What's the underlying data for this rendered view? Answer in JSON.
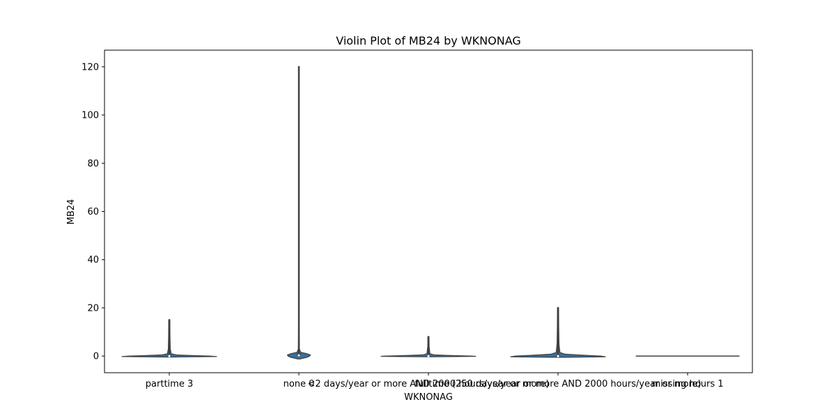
{
  "chart_data": {
    "type": "violin",
    "title": "Violin Plot of MB24 by WKNONAG",
    "xlabel": "WKNONAG",
    "ylabel": "MB24",
    "ylim": [
      -6.9,
      126.9
    ],
    "yticks": [
      0,
      20,
      40,
      60,
      80,
      100,
      120
    ],
    "ytick_labels": [
      "0",
      "20",
      "40",
      "60",
      "80",
      "100",
      "120"
    ],
    "grid": false,
    "colors": {
      "violin_fill": "#3a6e9c",
      "edge": "#3f3f3f",
      "frame": "#000000"
    },
    "categories": [
      {
        "label": "parttime 3",
        "max": 15,
        "min": 0,
        "q1": 0,
        "median": 0,
        "q3": 0.2,
        "width": 0.92,
        "density": [
          [
            -0.4,
            0.1
          ],
          [
            -0.2,
            1
          ],
          [
            0,
            0.85
          ],
          [
            0.2,
            0.5
          ],
          [
            0.5,
            0.15
          ],
          [
            1,
            0.04
          ],
          [
            3,
            0.02
          ],
          [
            8,
            0.015
          ],
          [
            15,
            0.012
          ]
        ]
      },
      {
        "label": "none 0",
        "max": 120,
        "min": 0,
        "q1": 0,
        "median": 0.3,
        "q3": 0.8,
        "width": 0.22,
        "density": [
          [
            -1.2,
            0.1
          ],
          [
            -0.5,
            0.7
          ],
          [
            0,
            0.95
          ],
          [
            0.5,
            1
          ],
          [
            1,
            0.7
          ],
          [
            1.6,
            0.15
          ],
          [
            3,
            0.04
          ],
          [
            10,
            0.025
          ],
          [
            60,
            0.02
          ],
          [
            120,
            0.015
          ]
        ]
      },
      {
        "label": "<2 days/year or more AND 2000 hours/year or more)",
        "max": 8,
        "min": 0,
        "q1": 0,
        "median": 0,
        "q3": 0.1,
        "width": 0.92,
        "density": [
          [
            -0.3,
            0.1
          ],
          [
            -0.1,
            1
          ],
          [
            0,
            0.9
          ],
          [
            0.2,
            0.5
          ],
          [
            0.5,
            0.12
          ],
          [
            1,
            0.03
          ],
          [
            4,
            0.015
          ],
          [
            8,
            0.012
          ]
        ]
      },
      {
        "label": "fulltime (250 days/year or more AND 2000 hours/year or more)",
        "max": 20,
        "min": 0,
        "q1": 0,
        "median": 0,
        "q3": 0.3,
        "width": 0.92,
        "density": [
          [
            -0.5,
            0.1
          ],
          [
            -0.3,
            1
          ],
          [
            0,
            0.9
          ],
          [
            0.3,
            0.6
          ],
          [
            0.8,
            0.15
          ],
          [
            1.5,
            0.04
          ],
          [
            5,
            0.02
          ],
          [
            12,
            0.015
          ],
          [
            20,
            0.012
          ]
        ]
      },
      {
        "label": "missing hours 1",
        "max": 0,
        "min": 0,
        "q1": 0,
        "median": 0,
        "q3": 0,
        "width": 1.0,
        "density": []
      }
    ]
  }
}
